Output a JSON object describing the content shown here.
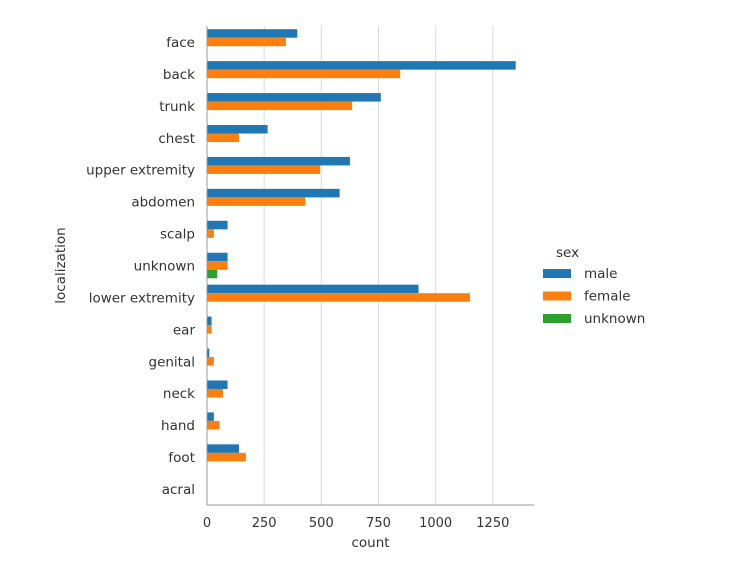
{
  "chart_data": {
    "type": "bar",
    "orientation": "horizontal",
    "title": "",
    "xlabel": "count",
    "ylabel": "localization",
    "xlim": [
      0,
      1430
    ],
    "xticks": [
      0,
      250,
      500,
      750,
      1000,
      1250
    ],
    "grid": "vertical",
    "legend_title": "sex",
    "legend_position": "right",
    "categories": [
      "face",
      "back",
      "trunk",
      "chest",
      "upper extremity",
      "abdomen",
      "scalp",
      "unknown",
      "lower extremity",
      "ear",
      "genital",
      "neck",
      "hand",
      "foot",
      "acral"
    ],
    "series": [
      {
        "name": "male",
        "color": "#1f77b4",
        "values": [
          395,
          1350,
          760,
          265,
          625,
          580,
          90,
          90,
          925,
          20,
          10,
          90,
          30,
          140,
          0
        ]
      },
      {
        "name": "female",
        "color": "#ff7f0e",
        "values": [
          345,
          845,
          635,
          140,
          495,
          430,
          30,
          90,
          1150,
          20,
          30,
          70,
          55,
          170,
          0
        ]
      },
      {
        "name": "unknown",
        "color": "#2ca02c",
        "values": [
          0,
          0,
          0,
          0,
          0,
          0,
          0,
          45,
          0,
          0,
          0,
          0,
          0,
          0,
          0
        ]
      }
    ]
  }
}
